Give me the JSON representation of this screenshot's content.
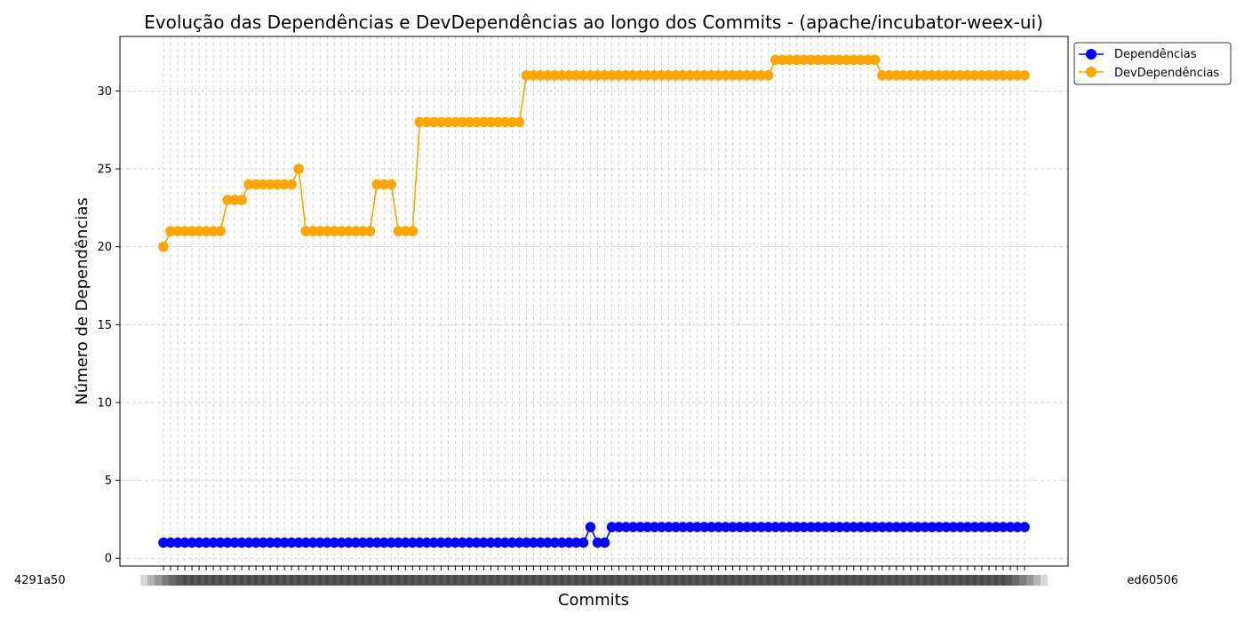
{
  "chart_data": {
    "type": "line",
    "title": "Evolução das Dependências e DevDependências ao longo dos Commits - (apache/incubator-weex-ui)",
    "xlabel": "Commits",
    "ylabel": "Número de Dependências",
    "ylim": [
      -0.5,
      33.5
    ],
    "yticks": [
      0,
      5,
      10,
      15,
      20,
      25,
      30
    ],
    "grid": true,
    "legend": "upper-right-outside",
    "x_tick_labels_first": "4291a50",
    "x_tick_labels_last": "ed60506",
    "series": [
      {
        "name": "Dependências",
        "color": "#0000ff",
        "values": [
          1,
          1,
          1,
          1,
          1,
          1,
          1,
          1,
          1,
          1,
          1,
          1,
          1,
          1,
          1,
          1,
          1,
          1,
          1,
          1,
          1,
          1,
          1,
          1,
          1,
          1,
          1,
          1,
          1,
          1,
          1,
          1,
          1,
          1,
          1,
          1,
          1,
          1,
          1,
          1,
          1,
          1,
          1,
          1,
          1,
          1,
          1,
          1,
          1,
          1,
          1,
          1,
          1,
          1,
          1,
          1,
          1,
          1,
          1,
          1,
          2,
          1,
          1,
          2,
          2,
          2,
          2,
          2,
          2,
          2,
          2,
          2,
          2,
          2,
          2,
          2,
          2,
          2,
          2,
          2,
          2,
          2,
          2,
          2,
          2,
          2,
          2,
          2,
          2,
          2,
          2,
          2,
          2,
          2,
          2,
          2,
          2,
          2,
          2,
          2,
          2,
          2,
          2,
          2,
          2,
          2,
          2,
          2,
          2,
          2,
          2,
          2,
          2,
          2,
          2,
          2,
          2,
          2,
          2,
          2,
          2,
          2
        ]
      },
      {
        "name": "DevDependências",
        "color": "#ffa500",
        "values": [
          20,
          21,
          21,
          21,
          21,
          21,
          21,
          21,
          21,
          23,
          23,
          23,
          24,
          24,
          24,
          24,
          24,
          24,
          24,
          25,
          21,
          21,
          21,
          21,
          21,
          21,
          21,
          21,
          21,
          21,
          24,
          24,
          24,
          21,
          21,
          21,
          28,
          28,
          28,
          28,
          28,
          28,
          28,
          28,
          28,
          28,
          28,
          28,
          28,
          28,
          28,
          31,
          31,
          31,
          31,
          31,
          31,
          31,
          31,
          31,
          31,
          31,
          31,
          31,
          31,
          31,
          31,
          31,
          31,
          31,
          31,
          31,
          31,
          31,
          31,
          31,
          31,
          31,
          31,
          31,
          31,
          31,
          31,
          31,
          31,
          31,
          32,
          32,
          32,
          32,
          32,
          32,
          32,
          32,
          32,
          32,
          32,
          32,
          32,
          32,
          32,
          31,
          31,
          31,
          31,
          31,
          31,
          31,
          31,
          31,
          31,
          31,
          31,
          31,
          31,
          31,
          31,
          31,
          31,
          31,
          31,
          31
        ]
      }
    ]
  }
}
